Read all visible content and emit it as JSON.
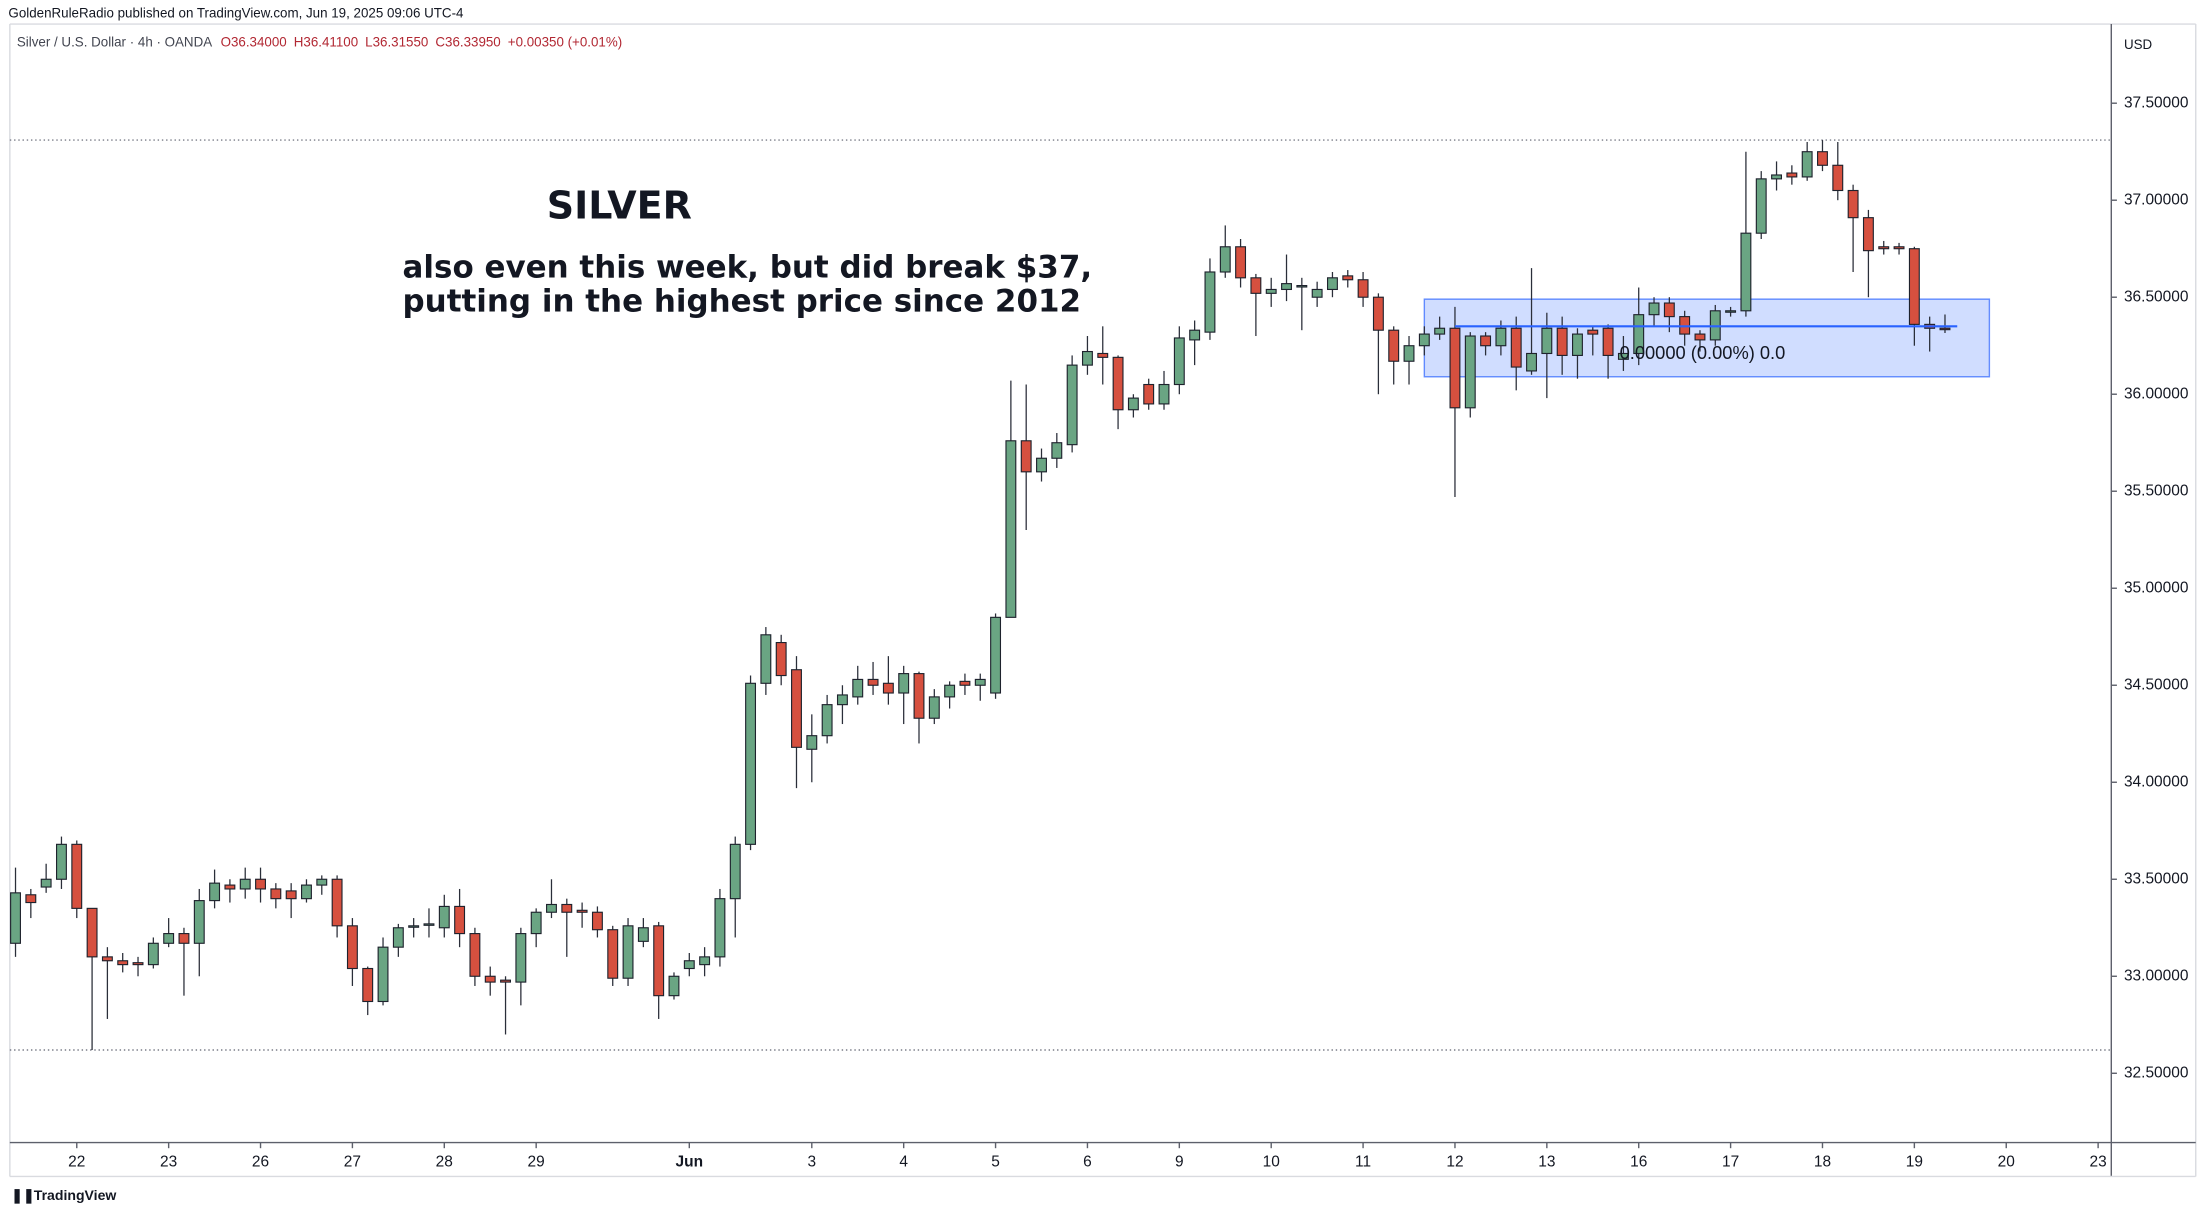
{
  "chart_data": {
    "type": "candlestick",
    "publisher_line": "GoldenRuleRadio published on TradingView.com, Jun 19, 2025 09:06 UTC-4",
    "symbol": "Silver / U.S. Dollar · 4h · OANDA",
    "ohlc_legend": [
      "O36.34000",
      "H36.41100",
      "L36.31550",
      "C36.33950",
      "+0.00350 (+0.01%)"
    ],
    "currency": "USD",
    "title": "SILVER",
    "subtitle_lines": [
      "also even this week, but did break $37,",
      "putting in the highest price since 2012"
    ],
    "brand": "TradingView",
    "up_color": "#6aa583",
    "down_color": "#d6503f",
    "open": [
      33.17,
      33.42,
      33.46,
      33.5,
      33.68,
      33.35,
      33.1,
      33.08,
      33.07,
      33.06,
      33.17,
      33.22,
      33.17,
      33.39,
      33.47,
      33.45,
      33.5,
      33.45,
      33.44,
      33.4,
      33.47,
      33.5,
      33.26,
      33.04,
      32.87,
      33.15,
      33.26,
      33.27,
      33.25,
      33.36,
      33.22,
      33.0,
      32.98,
      32.97,
      33.22,
      33.33,
      33.37,
      33.34,
      33.33,
      33.24,
      32.99,
      33.18,
      33.26,
      32.9,
      33.04,
      33.06,
      33.1,
      33.4,
      33.68,
      34.51,
      34.72,
      34.58,
      34.17,
      34.24,
      34.4,
      34.44,
      34.53,
      34.51,
      34.46,
      34.56,
      34.33,
      34.44,
      34.52,
      34.5,
      34.46,
      34.85,
      35.76,
      35.6,
      35.67,
      35.74,
      36.15,
      36.21,
      36.19,
      35.92,
      36.05,
      35.95,
      36.05,
      36.28,
      36.32,
      36.63,
      36.76,
      36.6,
      36.52,
      36.54,
      36.56,
      36.5,
      36.54,
      36.61,
      36.59,
      36.5,
      36.33,
      36.17,
      36.25,
      36.31,
      36.34,
      35.93,
      36.3,
      36.25,
      36.34,
      36.12,
      36.21,
      36.34,
      36.2,
      36.33,
      36.34,
      36.18,
      36.21,
      36.41,
      36.47,
      36.4,
      36.31,
      36.28,
      36.43,
      36.43,
      36.83,
      37.11,
      37.14,
      37.12,
      37.25,
      37.18,
      37.05,
      36.91,
      36.76,
      36.76,
      36.75,
      36.36,
      36.34
    ],
    "high": [
      33.56,
      33.45,
      33.58,
      33.72,
      33.7,
      33.35,
      33.15,
      33.12,
      33.1,
      33.2,
      33.3,
      33.25,
      33.45,
      33.55,
      33.5,
      33.56,
      33.56,
      33.48,
      33.48,
      33.5,
      33.52,
      33.52,
      33.3,
      33.05,
      33.2,
      33.27,
      33.3,
      33.35,
      33.42,
      33.45,
      33.25,
      33.05,
      33.0,
      33.25,
      33.35,
      33.5,
      33.4,
      33.38,
      33.36,
      33.26,
      33.3,
      33.3,
      33.28,
      33.02,
      33.12,
      33.15,
      33.45,
      33.72,
      34.55,
      34.8,
      34.76,
      34.65,
      34.35,
      34.45,
      34.5,
      34.6,
      34.62,
      34.65,
      34.6,
      34.57,
      34.48,
      34.52,
      34.56,
      34.56,
      34.87,
      36.07,
      36.05,
      35.72,
      35.8,
      36.2,
      36.3,
      36.35,
      36.2,
      36.0,
      36.08,
      36.12,
      36.35,
      36.38,
      36.7,
      36.87,
      36.8,
      36.62,
      36.6,
      36.72,
      36.6,
      36.58,
      36.63,
      36.64,
      36.63,
      36.52,
      36.35,
      36.3,
      36.35,
      36.4,
      36.45,
      36.32,
      36.32,
      36.38,
      36.4,
      36.65,
      36.42,
      36.4,
      36.34,
      36.35,
      36.36,
      36.3,
      36.55,
      36.5,
      36.5,
      36.43,
      36.33,
      36.46,
      36.45,
      37.25,
      37.15,
      37.2,
      37.18,
      37.3,
      37.31,
      37.3,
      37.08,
      36.95,
      36.79,
      36.78,
      36.76,
      36.4,
      36.411
    ],
    "low": [
      33.1,
      33.3,
      33.43,
      33.45,
      33.3,
      32.62,
      32.78,
      33.02,
      33.0,
      33.04,
      33.15,
      32.9,
      33.0,
      33.35,
      33.38,
      33.4,
      33.38,
      33.35,
      33.3,
      33.38,
      33.42,
      33.2,
      32.95,
      32.8,
      32.85,
      33.1,
      33.2,
      33.2,
      33.2,
      33.15,
      32.95,
      32.9,
      32.7,
      32.85,
      33.15,
      33.3,
      33.1,
      33.25,
      33.2,
      32.95,
      32.95,
      33.15,
      32.78,
      32.88,
      33.0,
      33.0,
      33.05,
      33.2,
      33.65,
      34.45,
      34.5,
      33.97,
      34.0,
      34.2,
      34.3,
      34.4,
      34.45,
      34.4,
      34.3,
      34.2,
      34.3,
      34.38,
      34.45,
      34.42,
      34.43,
      34.85,
      35.3,
      35.55,
      35.62,
      35.7,
      36.1,
      36.05,
      35.82,
      35.88,
      35.92,
      35.92,
      36.0,
      36.15,
      36.28,
      36.6,
      36.55,
      36.3,
      36.45,
      36.48,
      36.33,
      36.45,
      36.5,
      36.55,
      36.45,
      36.0,
      36.05,
      36.05,
      36.2,
      36.28,
      35.47,
      35.88,
      36.2,
      36.2,
      36.02,
      36.1,
      35.98,
      36.1,
      36.08,
      36.2,
      36.08,
      36.12,
      36.15,
      36.35,
      36.32,
      36.25,
      36.22,
      36.25,
      36.4,
      36.4,
      36.8,
      37.05,
      37.08,
      37.1,
      37.15,
      37.0,
      36.63,
      36.5,
      36.72,
      36.72,
      36.25,
      36.22,
      36.3155
    ],
    "close": [
      33.43,
      33.38,
      33.5,
      33.68,
      33.35,
      33.1,
      33.08,
      33.06,
      33.06,
      33.17,
      33.22,
      33.17,
      33.39,
      33.48,
      33.45,
      33.5,
      33.45,
      33.4,
      33.4,
      33.47,
      33.5,
      33.26,
      33.04,
      32.87,
      33.15,
      33.25,
      33.26,
      33.27,
      33.36,
      33.22,
      33.0,
      32.97,
      32.97,
      33.22,
      33.33,
      33.37,
      33.33,
      33.33,
      33.24,
      32.99,
      33.26,
      33.25,
      32.9,
      33.0,
      33.08,
      33.1,
      33.4,
      33.68,
      34.51,
      34.76,
      34.55,
      34.18,
      34.24,
      34.4,
      34.45,
      34.53,
      34.5,
      34.46,
      34.56,
      34.33,
      34.44,
      34.5,
      34.5,
      34.53,
      34.85,
      35.76,
      35.6,
      35.67,
      35.75,
      36.15,
      36.22,
      36.19,
      35.92,
      35.98,
      35.95,
      36.05,
      36.29,
      36.33,
      36.63,
      36.76,
      36.6,
      36.52,
      36.54,
      36.57,
      36.56,
      36.54,
      36.6,
      36.59,
      36.5,
      36.33,
      36.17,
      36.25,
      36.31,
      36.34,
      35.93,
      36.3,
      36.25,
      36.34,
      36.14,
      36.21,
      36.34,
      36.2,
      36.31,
      36.31,
      36.2,
      36.21,
      36.41,
      36.47,
      36.4,
      36.31,
      36.28,
      36.43,
      36.43,
      36.83,
      37.11,
      37.13,
      37.12,
      37.25,
      37.18,
      37.05,
      36.91,
      36.74,
      36.75,
      36.75,
      36.36,
      36.34,
      36.3395
    ],
    "xlim": [
      -0.37,
      136.86
    ],
    "xticks": [
      {
        "value": 4,
        "label": "22"
      },
      {
        "value": 10,
        "label": "23"
      },
      {
        "value": 16,
        "label": "26"
      },
      {
        "value": 22,
        "label": "27"
      },
      {
        "value": 28,
        "label": "28"
      },
      {
        "value": 34,
        "label": "29"
      },
      {
        "value": 44,
        "label": "Jun"
      },
      {
        "value": 52,
        "label": "3"
      },
      {
        "value": 58,
        "label": "4"
      },
      {
        "value": 64,
        "label": "5"
      },
      {
        "value": 70,
        "label": "6"
      },
      {
        "value": 76,
        "label": "9"
      },
      {
        "value": 82,
        "label": "10"
      },
      {
        "value": 88,
        "label": "11"
      },
      {
        "value": 94,
        "label": "12"
      },
      {
        "value": 100,
        "label": "13"
      },
      {
        "value": 106,
        "label": "16"
      },
      {
        "value": 112,
        "label": "17"
      },
      {
        "value": 118,
        "label": "18"
      },
      {
        "value": 124,
        "label": "19"
      },
      {
        "value": 130,
        "label": "20"
      },
      {
        "value": 136,
        "label": "23"
      }
    ],
    "ylim": [
      32.143,
      37.908
    ],
    "yticks": [
      {
        "value": 32.5,
        "label": "32.50000"
      },
      {
        "value": 33,
        "label": "33.00000"
      },
      {
        "value": 33.5,
        "label": "33.50000"
      },
      {
        "value": 34,
        "label": "34.00000"
      },
      {
        "value": 34.5,
        "label": "34.50000"
      },
      {
        "value": 35,
        "label": "35.00000"
      },
      {
        "value": 35.5,
        "label": "35.50000"
      },
      {
        "value": 36,
        "label": "36.00000"
      },
      {
        "value": 36.5,
        "label": "36.50000"
      },
      {
        "value": 37,
        "label": "37.00000"
      },
      {
        "value": 37.5,
        "label": "37.50000"
      }
    ],
    "range_box": {
      "top": 36.49,
      "bottom": 36.09,
      "from": 92,
      "to": 128.9,
      "level": 36.35,
      "level_from": 94,
      "level_to": 126.8,
      "label": "0.00000 (0.00%) 0.0",
      "color": "#2962ff"
    }
  }
}
